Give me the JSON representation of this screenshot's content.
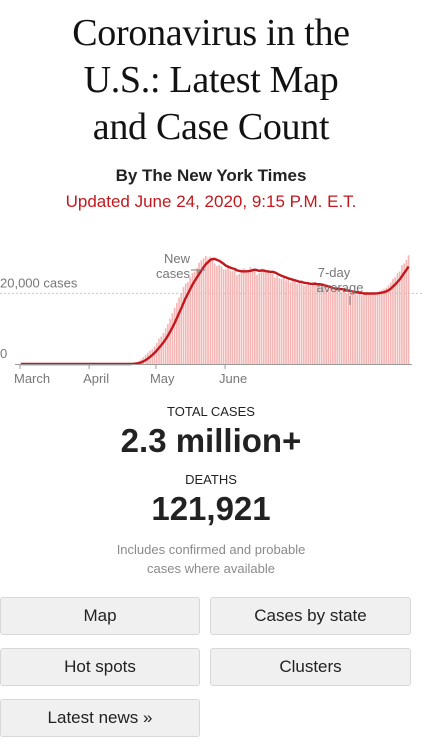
{
  "headline": {
    "line1": "Coronavirus in the",
    "line2": "U.S.: Latest Map",
    "line3": "and Case Count"
  },
  "byline": "By The New York Times",
  "updated": "Updated June 24, 2020, 9:15 P.M. E.T.",
  "colors": {
    "accent_red": "#c4171d",
    "bar_pink": "#f3b6b4"
  },
  "chart_data": {
    "type": "bar",
    "annotations": {
      "bars": [
        "New",
        "cases"
      ],
      "average": [
        "7-day",
        "average"
      ]
    },
    "y_ticks": [
      {
        "value": 20000,
        "label": "20,000 cases"
      },
      {
        "value": 0,
        "label": "0"
      }
    ],
    "ylim": [
      0,
      34000
    ],
    "x_tick_labels": [
      "March",
      "April",
      "May",
      "June"
    ],
    "series": [
      {
        "name": "New cases",
        "values": [
          0,
          0,
          0,
          0,
          0,
          0,
          0,
          0,
          0,
          0,
          0,
          0,
          0,
          0,
          0,
          0,
          0,
          0,
          0,
          0,
          0,
          0,
          0,
          0,
          0,
          0,
          0,
          0,
          0,
          0,
          0,
          0,
          0,
          0,
          0,
          0,
          0,
          0,
          0,
          0,
          0,
          0,
          0,
          0,
          0,
          0,
          0,
          0,
          0,
          0,
          200,
          300,
          500,
          900,
          1300,
          1900,
          2600,
          3200,
          3800,
          4200,
          5000,
          6000,
          7200,
          7800,
          8800,
          10100,
          11400,
          12800,
          14400,
          15900,
          17300,
          18800,
          20000,
          21800,
          22800,
          23200,
          24600,
          25800,
          26200,
          27200,
          28700,
          29400,
          30000,
          30600,
          29900,
          30400,
          29400,
          28500,
          27800,
          28100,
          27700,
          26800,
          26800,
          27500,
          26500,
          26300,
          26800,
          25200,
          25600,
          26200,
          27100,
          26700,
          26400,
          27500,
          26500,
          26600,
          25300,
          25800,
          27100,
          26600,
          26200,
          26100,
          25500,
          25500,
          24500,
          24900,
          24300,
          24100,
          24500,
          23700,
          24000,
          23100,
          23400,
          23300,
          22700,
          22900,
          23600,
          22300,
          22300,
          22900,
          22100,
          22900,
          23200,
          22600,
          22200,
          21600,
          21900,
          20700,
          21600,
          22100,
          20500,
          21400,
          21100,
          21400,
          20400,
          20800,
          20000,
          20800,
          20100,
          20300,
          20500,
          19700,
          19900,
          19500,
          19800,
          20400,
          20000,
          20300,
          19900,
          20100,
          19700,
          20500,
          20900,
          21300,
          21600,
          22300,
          23100,
          24100,
          24600,
          25700,
          26200,
          28000,
          28500,
          29500,
          30800
        ]
      }
    ]
  },
  "totals": {
    "cases_label": "TOTAL CASES",
    "cases_value": "2.3 million+",
    "deaths_label": "DEATHS",
    "deaths_value": "121,921",
    "note_line1": "Includes confirmed and probable",
    "note_line2": "cases where available"
  },
  "buttons": {
    "map": "Map",
    "cases_by_state": "Cases by state",
    "hot_spots": "Hot spots",
    "clusters": "Clusters",
    "latest_news": "Latest news »"
  }
}
